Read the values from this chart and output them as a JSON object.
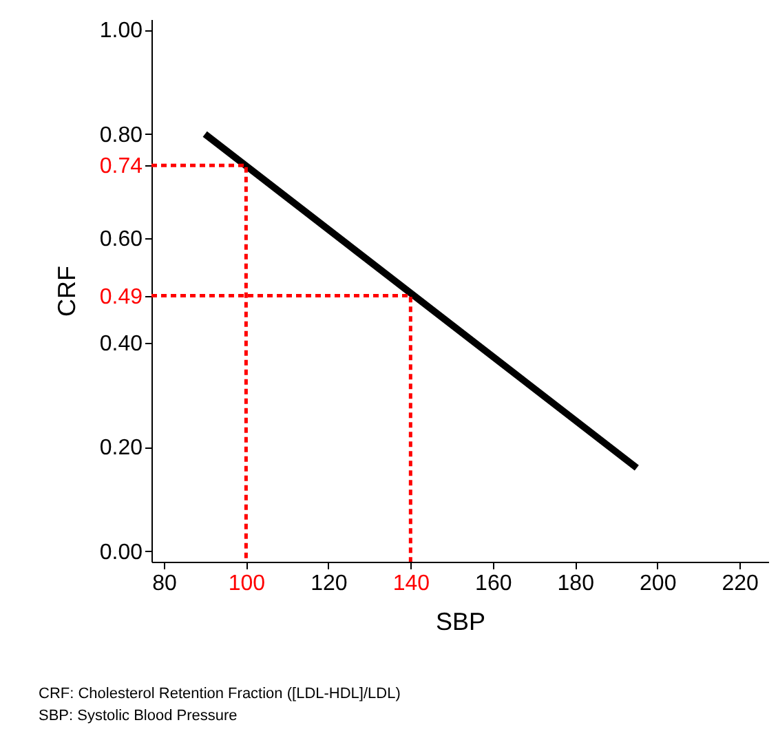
{
  "chart_data": {
    "type": "line",
    "xlabel": "SBP",
    "ylabel": "CRF",
    "xlim": [
      77,
      227
    ],
    "xticks": [
      80,
      100,
      120,
      140,
      160,
      180,
      200,
      220
    ],
    "ylim": [
      -0.02,
      1.02
    ],
    "yticks": [
      {
        "value": 0,
        "label": "0.00"
      },
      {
        "value": 0.2,
        "label": "0.20"
      },
      {
        "value": 0.4,
        "label": "0.40"
      },
      0.49,
      {
        "value": 0.6,
        "label": "0.60"
      },
      0.74,
      {
        "value": 0.8,
        "label": "0.80"
      },
      {
        "value": 1,
        "label": "1.00"
      }
    ],
    "grid": false,
    "marker": "none",
    "series": [
      {
        "color": "#000000",
        "line_style": "solid",
        "x": [
          90,
          195
        ],
        "values": [
          0.8,
          0.16
        ]
      },
      {
        "color": "#ff0000",
        "line_style": "dashed",
        "x": [
          77,
          100,
          100
        ],
        "values": [
          0.74,
          0.74,
          -0.02
        ]
      },
      {
        "color": "#ff0000",
        "line_style": "dashed",
        "x": [
          77,
          140,
          140
        ],
        "values": [
          0.49,
          0.49,
          -0.02
        ]
      }
    ],
    "annotations": [
      "CRF: Cholesterol Retention Fraction ([LDL-HDL]/LDL)",
      "SBP: Systolic Blood Pressure"
    ]
  }
}
